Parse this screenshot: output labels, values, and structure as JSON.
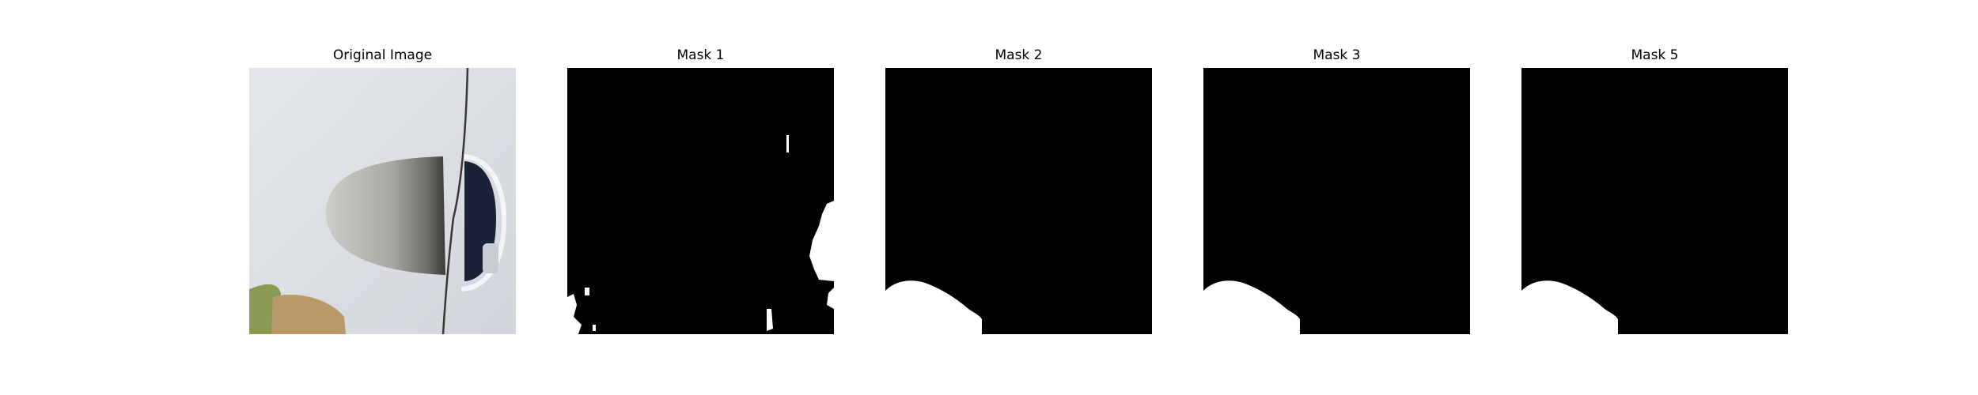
{
  "figure": {
    "panels": [
      {
        "title": "Original Image"
      },
      {
        "title": "Mask 1"
      },
      {
        "title": "Mask 2"
      },
      {
        "title": "Mask 3"
      },
      {
        "title": "Mask 5"
      }
    ]
  },
  "colors": {
    "background": "#ffffff",
    "mask_background": "#000000",
    "mask_foreground": "#ffffff",
    "wall": "#dde1e6",
    "light_fixture": "#b8b7b2",
    "doorway_dark": "#1a2238",
    "cushion_green": "#8a9a52",
    "cushion_tan": "#b89a6a"
  }
}
